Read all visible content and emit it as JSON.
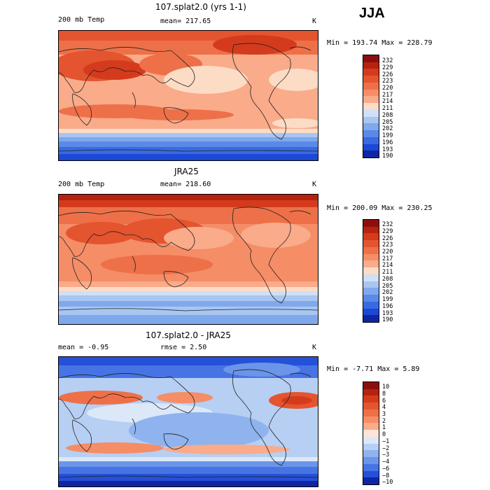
{
  "season_label": "JJA",
  "panels": [
    {
      "title": "107.splat2.0 (yrs 1-1)",
      "left_label": "200 mb Temp",
      "center_label": "mean= 217.65",
      "unit": "K",
      "stats": "Min = 193.74  Max = 228.79",
      "levels": [
        "232",
        "229",
        "226",
        "223",
        "220",
        "217",
        "214",
        "211",
        "208",
        "205",
        "202",
        "199",
        "196",
        "193",
        "190"
      ],
      "colors": [
        "#8b0f0f",
        "#b5230f",
        "#d43b1c",
        "#e4542f",
        "#ee7048",
        "#f58d67",
        "#f9ab8a",
        "#fddcc5",
        "#cfe0f7",
        "#a8c6f1",
        "#80a8ec",
        "#5a8ae8",
        "#3a6ae2",
        "#1b48d4",
        "#0f25a6"
      ]
    },
    {
      "title": "JRA25",
      "left_label": "200 mb Temp",
      "center_label": "mean= 218.60",
      "unit": "K",
      "stats": "Min = 200.09  Max = 230.25",
      "levels": [
        "232",
        "229",
        "226",
        "223",
        "220",
        "217",
        "214",
        "211",
        "208",
        "205",
        "202",
        "199",
        "196",
        "193",
        "190"
      ],
      "colors": [
        "#8b0f0f",
        "#b5230f",
        "#d43b1c",
        "#e4542f",
        "#ee7048",
        "#f58d67",
        "#f9ab8a",
        "#fddcc5",
        "#cfe0f7",
        "#a8c6f1",
        "#80a8ec",
        "#5a8ae8",
        "#3a6ae2",
        "#1b48d4",
        "#0f25a6"
      ]
    },
    {
      "title": "107.splat2.0 - JRA25",
      "left_label": "mean =   -0.95",
      "center_label": "rmse =    2.50",
      "unit": "K",
      "stats": "Min =  -7.71  Max =    5.89",
      "levels": [
        "10",
        "8",
        "6",
        "4",
        "3",
        "2",
        "1",
        "0",
        "−1",
        "−2",
        "−3",
        "−4",
        "−6",
        "−8",
        "−10"
      ],
      "colors": [
        "#8b0f0f",
        "#b5230f",
        "#d43b1c",
        "#e4542f",
        "#ee7048",
        "#f58d67",
        "#f9ab8a",
        "#fde6d8",
        "#dce8f8",
        "#b6cff3",
        "#8eb3ee",
        "#6a95ea",
        "#4674e4",
        "#2550d8",
        "#0f25a6"
      ]
    }
  ]
}
